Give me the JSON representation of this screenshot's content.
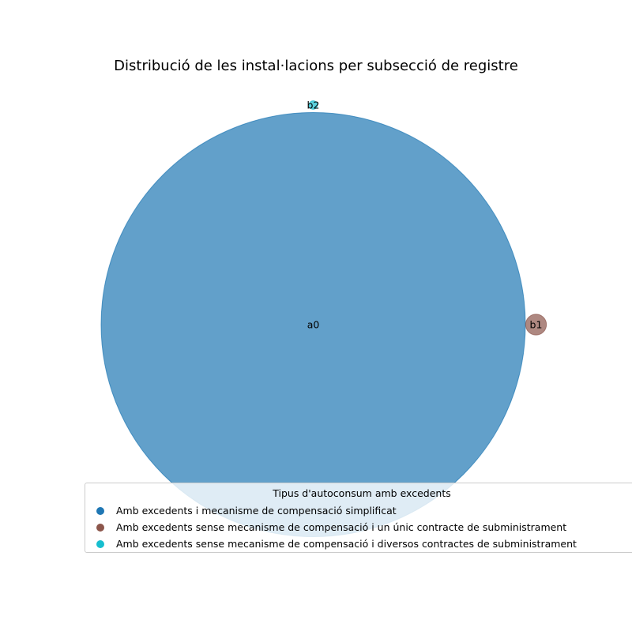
{
  "chart_data": {
    "type": "bubble",
    "title": "Distribució de les instal·lacions per subsecció de registre",
    "points": [
      {
        "label": "a0",
        "category": 0,
        "relative_size": 1.0
      },
      {
        "label": "b1",
        "category": 1,
        "relative_size": 0.0024
      },
      {
        "label": "b2",
        "category": 2,
        "relative_size": 0.0004
      }
    ],
    "legend": {
      "title": "Tipus d'autoconsum amb excedents",
      "placement": "bottom",
      "entries": [
        {
          "label": "Amb excedents i mecanisme de compensació simplificat",
          "color": "#1f77b4"
        },
        {
          "label": "Amb excedents sense mecanisme de compensació i un únic contracte de subministrament",
          "color": "#8c564b"
        },
        {
          "label": "Amb excedents sense mecanisme de compensació i diversos contractes de subministrament",
          "color": "#17becf"
        }
      ]
    },
    "alpha": 0.7
  }
}
